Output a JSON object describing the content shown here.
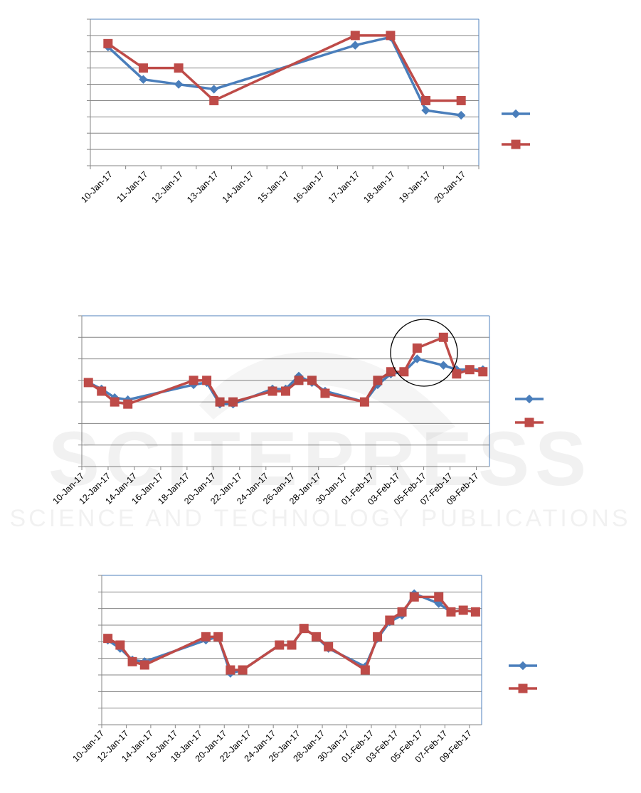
{
  "chart_data": [
    {
      "type": "line",
      "categories": [
        "10-Jan-17",
        "11-Jan-17",
        "12-Jan-17",
        "13-Jan-17",
        "14-Jan-17",
        "15-Jan-17",
        "16-Jan-17",
        "17-Jan-17",
        "18-Jan-17",
        "19-Jan-17",
        "20-Jan-17"
      ],
      "ylim": [
        0,
        9
      ],
      "grid": true,
      "legend": "right",
      "series": [
        {
          "color": "#4a7ebb",
          "marker": "diamond",
          "values": [
            7.3,
            5.3,
            5.0,
            4.7,
            null,
            null,
            null,
            7.4,
            7.9,
            3.4,
            3.1
          ]
        },
        {
          "color": "#be4b48",
          "marker": "square",
          "values": [
            7.5,
            6.0,
            6.0,
            4.0,
            null,
            null,
            null,
            8.0,
            8.0,
            4.0,
            4.0
          ]
        }
      ]
    },
    {
      "type": "line",
      "categories": [
        "10-Jan-17",
        "12-Jan-17",
        "14-Jan-17",
        "16-Jan-17",
        "18-Jan-17",
        "20-Jan-17",
        "22-Jan-17",
        "24-Jan-17",
        "26-Jan-17",
        "28-Jan-17",
        "30-Jan-17",
        "01-Feb-17",
        "03-Feb-17",
        "05-Feb-17",
        "07-Feb-17",
        "09-Feb-17"
      ],
      "ylim": [
        0,
        7
      ],
      "grid": true,
      "legend": "right",
      "annotation": "circle-around-03-Feb-to-06-Feb",
      "series": [
        {
          "color": "#4a7ebb",
          "marker": "diamond",
          "points": [
            [
              0,
              3.9
            ],
            [
              1,
              3.6
            ],
            [
              2,
              3.2
            ],
            [
              3,
              3.1
            ],
            [
              8,
              3.8
            ],
            [
              9,
              3.9
            ],
            [
              10,
              2.9
            ],
            [
              11,
              2.9
            ],
            [
              14,
              3.6
            ],
            [
              15,
              3.6
            ],
            [
              16,
              4.2
            ],
            [
              17,
              3.9
            ],
            [
              18,
              3.5
            ],
            [
              21,
              3.0
            ],
            [
              22,
              3.8
            ],
            [
              23,
              4.3
            ],
            [
              24,
              4.4
            ],
            [
              25,
              5.0
            ],
            [
              27,
              4.7
            ],
            [
              28,
              4.5
            ],
            [
              29,
              4.5
            ],
            [
              30,
              4.5
            ]
          ]
        },
        {
          "color": "#be4b48",
          "marker": "square",
          "points": [
            [
              0,
              3.9
            ],
            [
              1,
              3.5
            ],
            [
              2,
              3.0
            ],
            [
              3,
              2.9
            ],
            [
              8,
              4.0
            ],
            [
              9,
              4.0
            ],
            [
              10,
              3.0
            ],
            [
              11,
              3.0
            ],
            [
              14,
              3.5
            ],
            [
              15,
              3.5
            ],
            [
              16,
              4.0
            ],
            [
              17,
              4.0
            ],
            [
              18,
              3.4
            ],
            [
              21,
              3.0
            ],
            [
              22,
              4.0
            ],
            [
              23,
              4.4
            ],
            [
              24,
              4.4
            ],
            [
              25,
              5.5
            ],
            [
              27,
              6.0
            ],
            [
              28,
              4.3
            ],
            [
              29,
              4.5
            ],
            [
              30,
              4.4
            ]
          ]
        }
      ]
    },
    {
      "type": "line",
      "categories": [
        "10-Jan-17",
        "12-Jan-17",
        "14-Jan-17",
        "16-Jan-17",
        "18-Jan-17",
        "20-Jan-17",
        "22-Jan-17",
        "24-Jan-17",
        "26-Jan-17",
        "28-Jan-17",
        "30-Jan-17",
        "01-Feb-17",
        "03-Feb-17",
        "05-Feb-17",
        "07-Feb-17",
        "09-Feb-17"
      ],
      "ylim": [
        0,
        9
      ],
      "grid": true,
      "legend": "right",
      "series": [
        {
          "color": "#4a7ebb",
          "marker": "diamond",
          "points": [
            [
              0,
              5.1
            ],
            [
              1,
              4.6
            ],
            [
              2,
              3.9
            ],
            [
              3,
              3.8
            ],
            [
              8,
              5.1
            ],
            [
              9,
              5.3
            ],
            [
              10,
              3.1
            ],
            [
              11,
              3.3
            ],
            [
              14,
              4.8
            ],
            [
              15,
              4.8
            ],
            [
              16,
              5.8
            ],
            [
              17,
              5.3
            ],
            [
              18,
              4.6
            ],
            [
              21,
              3.5
            ],
            [
              22,
              5.2
            ],
            [
              23,
              6.2
            ],
            [
              24,
              6.6
            ],
            [
              25,
              7.9
            ],
            [
              27,
              7.3
            ],
            [
              28,
              6.8
            ],
            [
              29,
              6.9
            ],
            [
              30,
              6.8
            ]
          ]
        },
        {
          "color": "#be4b48",
          "marker": "square",
          "points": [
            [
              0,
              5.2
            ],
            [
              1,
              4.8
            ],
            [
              2,
              3.8
            ],
            [
              3,
              3.6
            ],
            [
              8,
              5.3
            ],
            [
              9,
              5.3
            ],
            [
              10,
              3.3
            ],
            [
              11,
              3.3
            ],
            [
              14,
              4.8
            ],
            [
              15,
              4.8
            ],
            [
              16,
              5.8
            ],
            [
              17,
              5.3
            ],
            [
              18,
              4.7
            ],
            [
              21,
              3.3
            ],
            [
              22,
              5.3
            ],
            [
              23,
              6.3
            ],
            [
              24,
              6.8
            ],
            [
              25,
              7.7
            ],
            [
              27,
              7.7
            ],
            [
              28,
              6.8
            ],
            [
              29,
              6.9
            ],
            [
              30,
              6.8
            ]
          ]
        }
      ]
    }
  ],
  "watermark": {
    "brand": "SCITEPRESS",
    "tagline": "SCIENCE AND TECHNOLOGY PUBLICATIONS"
  }
}
